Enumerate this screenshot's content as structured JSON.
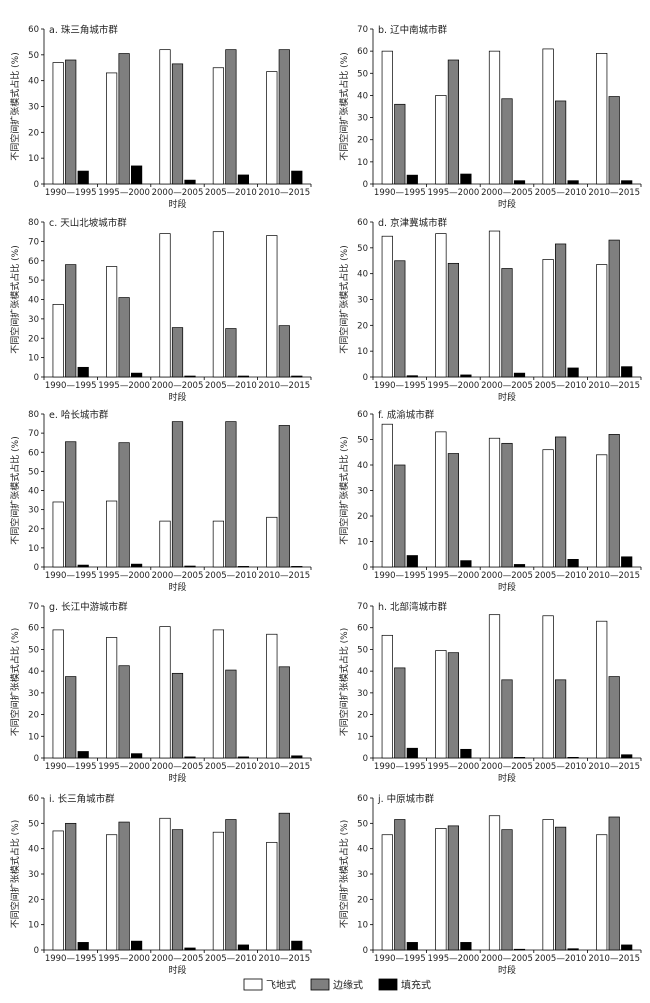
{
  "legend": [
    {
      "label": "飞地式",
      "color": "#ffffff"
    },
    {
      "label": "边缘式",
      "color": "#7f7f7f"
    },
    {
      "label": "填充式",
      "color": "#000000"
    }
  ],
  "chart_data": [
    {
      "type": "bar",
      "title": "a. 珠三角城市群",
      "categories": [
        "1990—1995",
        "1995—2000",
        "2000—2005",
        "2005—2010",
        "2010—2015"
      ],
      "xlabel": "时段",
      "ylabel": "不同空间扩张模式占比 (%)",
      "ylim": [
        0,
        60
      ],
      "yticks": [
        0,
        10,
        20,
        30,
        40,
        50,
        60
      ],
      "series": [
        {
          "name": "飞地式",
          "values": [
            47,
            43,
            52,
            45,
            43.5
          ]
        },
        {
          "name": "边缘式",
          "values": [
            48,
            50.5,
            46.5,
            52,
            52
          ]
        },
        {
          "name": "填充式",
          "values": [
            5,
            7,
            1.5,
            3.5,
            5
          ]
        }
      ]
    },
    {
      "type": "bar",
      "title": "b. 辽中南城市群",
      "categories": [
        "1990—1995",
        "1995—2000",
        "2000—2005",
        "2005—2010",
        "2010—2015"
      ],
      "xlabel": "时段",
      "ylabel": "不同空间扩张模式占比 (%)",
      "ylim": [
        0,
        70
      ],
      "yticks": [
        0,
        10,
        20,
        30,
        40,
        50,
        60,
        70
      ],
      "series": [
        {
          "name": "飞地式",
          "values": [
            60,
            40,
            60,
            61,
            59
          ]
        },
        {
          "name": "边缘式",
          "values": [
            36,
            56,
            38.5,
            37.5,
            39.5
          ]
        },
        {
          "name": "填充式",
          "values": [
            4,
            4.5,
            1.5,
            1.5,
            1.5
          ]
        }
      ]
    },
    {
      "type": "bar",
      "title": "c. 天山北坡城市群",
      "categories": [
        "1990—1995",
        "1995—2000",
        "2000—2005",
        "2005—2010",
        "2010—2015"
      ],
      "xlabel": "时段",
      "ylabel": "不同空间扩张模式占比 (%)",
      "ylim": [
        0,
        80
      ],
      "yticks": [
        0,
        10,
        20,
        30,
        40,
        50,
        60,
        70,
        80
      ],
      "series": [
        {
          "name": "飞地式",
          "values": [
            37.5,
            57,
            74,
            75,
            73
          ]
        },
        {
          "name": "边缘式",
          "values": [
            58,
            41,
            25.5,
            25,
            26.5
          ]
        },
        {
          "name": "填充式",
          "values": [
            5,
            2,
            0.5,
            0.5,
            0.5
          ]
        }
      ]
    },
    {
      "type": "bar",
      "title": "d. 京津冀城市群",
      "categories": [
        "1990—1995",
        "1995—2000",
        "2000—2005",
        "2005—2010",
        "2010—2015"
      ],
      "xlabel": "时段",
      "ylabel": "不同空间扩张模式占比 (%)",
      "ylim": [
        0,
        60
      ],
      "yticks": [
        0,
        10,
        20,
        30,
        40,
        50,
        60
      ],
      "series": [
        {
          "name": "飞地式",
          "values": [
            54.5,
            55.5,
            56.5,
            45.5,
            43.5
          ]
        },
        {
          "name": "边缘式",
          "values": [
            45,
            44,
            42,
            51.5,
            53
          ]
        },
        {
          "name": "填充式",
          "values": [
            0.5,
            0.8,
            1.5,
            3.5,
            4
          ]
        }
      ]
    },
    {
      "type": "bar",
      "title": "e. 哈长城市群",
      "categories": [
        "1990—1995",
        "1995—2000",
        "2000—2005",
        "2005—2010",
        "2010—2015"
      ],
      "xlabel": "时段",
      "ylabel": "不同空间扩张模式占比 (%)",
      "ylim": [
        0,
        80
      ],
      "yticks": [
        0,
        10,
        20,
        30,
        40,
        50,
        60,
        70,
        80
      ],
      "series": [
        {
          "name": "飞地式",
          "values": [
            34,
            34.5,
            24,
            24,
            26
          ]
        },
        {
          "name": "边缘式",
          "values": [
            65.5,
            65,
            76,
            76,
            74
          ]
        },
        {
          "name": "填充式",
          "values": [
            1,
            1.5,
            0.5,
            0.3,
            0.3
          ]
        }
      ]
    },
    {
      "type": "bar",
      "title": "f. 成渝城市群",
      "categories": [
        "1990—1995",
        "1995—2000",
        "2000—2005",
        "2005—2010",
        "2010—2015"
      ],
      "xlabel": "时段",
      "ylabel": "不同空间扩张模式占比 (%)",
      "ylim": [
        0,
        60
      ],
      "yticks": [
        0,
        10,
        20,
        30,
        40,
        50,
        60
      ],
      "series": [
        {
          "name": "飞地式",
          "values": [
            56,
            53,
            50.5,
            46,
            44
          ]
        },
        {
          "name": "边缘式",
          "values": [
            40,
            44.5,
            48.5,
            51,
            52
          ]
        },
        {
          "name": "填充式",
          "values": [
            4.5,
            2.5,
            1,
            3,
            4
          ]
        }
      ]
    },
    {
      "type": "bar",
      "title": "g. 长江中游城市群",
      "categories": [
        "1990—1995",
        "1995—2000",
        "2000—2005",
        "2005—2010",
        "2010—2015"
      ],
      "xlabel": "时段",
      "ylabel": "不同空间扩张模式占比 (%)",
      "ylim": [
        0,
        70
      ],
      "yticks": [
        0,
        10,
        20,
        30,
        40,
        50,
        60,
        70
      ],
      "series": [
        {
          "name": "飞地式",
          "values": [
            59,
            55.5,
            60.5,
            59,
            57
          ]
        },
        {
          "name": "边缘式",
          "values": [
            37.5,
            42.5,
            39,
            40.5,
            42
          ]
        },
        {
          "name": "填充式",
          "values": [
            3,
            2,
            0.5,
            0.5,
            1
          ]
        }
      ]
    },
    {
      "type": "bar",
      "title": "h. 北部湾城市群",
      "categories": [
        "1990—1995",
        "1995—2000",
        "2000—2005",
        "2005—2010",
        "2010—2015"
      ],
      "xlabel": "时段",
      "ylabel": "不同空间扩张模式占比 (%)",
      "ylim": [
        0,
        70
      ],
      "yticks": [
        0,
        10,
        20,
        30,
        40,
        50,
        60,
        70
      ],
      "series": [
        {
          "name": "飞地式",
          "values": [
            56.5,
            49.5,
            66,
            65.5,
            63
          ]
        },
        {
          "name": "边缘式",
          "values": [
            41.5,
            48.5,
            36,
            36,
            37.5
          ]
        },
        {
          "name": "填充式",
          "values": [
            4.5,
            4,
            0.3,
            0.3,
            1.5
          ]
        }
      ]
    },
    {
      "type": "bar",
      "title": "i. 长三角城市群",
      "categories": [
        "1990—1995",
        "1995—2000",
        "2000—2005",
        "2005—2010",
        "2010—2015"
      ],
      "xlabel": "时段",
      "ylabel": "不同空间扩张模式占比 (%)",
      "ylim": [
        0,
        60
      ],
      "yticks": [
        0,
        10,
        20,
        30,
        40,
        50,
        60
      ],
      "series": [
        {
          "name": "飞地式",
          "values": [
            47,
            45.5,
            52,
            46.5,
            42.5
          ]
        },
        {
          "name": "边缘式",
          "values": [
            50,
            50.5,
            47.5,
            51.5,
            54
          ]
        },
        {
          "name": "填充式",
          "values": [
            3,
            3.5,
            0.8,
            2,
            3.5
          ]
        }
      ]
    },
    {
      "type": "bar",
      "title": "j. 中原城市群",
      "categories": [
        "1990—1995",
        "1995—2000",
        "2000—2005",
        "2005—2010",
        "2010—2015"
      ],
      "xlabel": "时段",
      "ylabel": "不同空间扩张模式占比 (%)",
      "ylim": [
        0,
        60
      ],
      "yticks": [
        0,
        10,
        20,
        30,
        40,
        50,
        60
      ],
      "series": [
        {
          "name": "飞地式",
          "values": [
            45.5,
            48,
            53,
            51.5,
            45.5
          ]
        },
        {
          "name": "边缘式",
          "values": [
            51.5,
            49,
            47.5,
            48.5,
            52.5
          ]
        },
        {
          "name": "填充式",
          "values": [
            3,
            3,
            0.3,
            0.5,
            2
          ]
        }
      ]
    }
  ]
}
